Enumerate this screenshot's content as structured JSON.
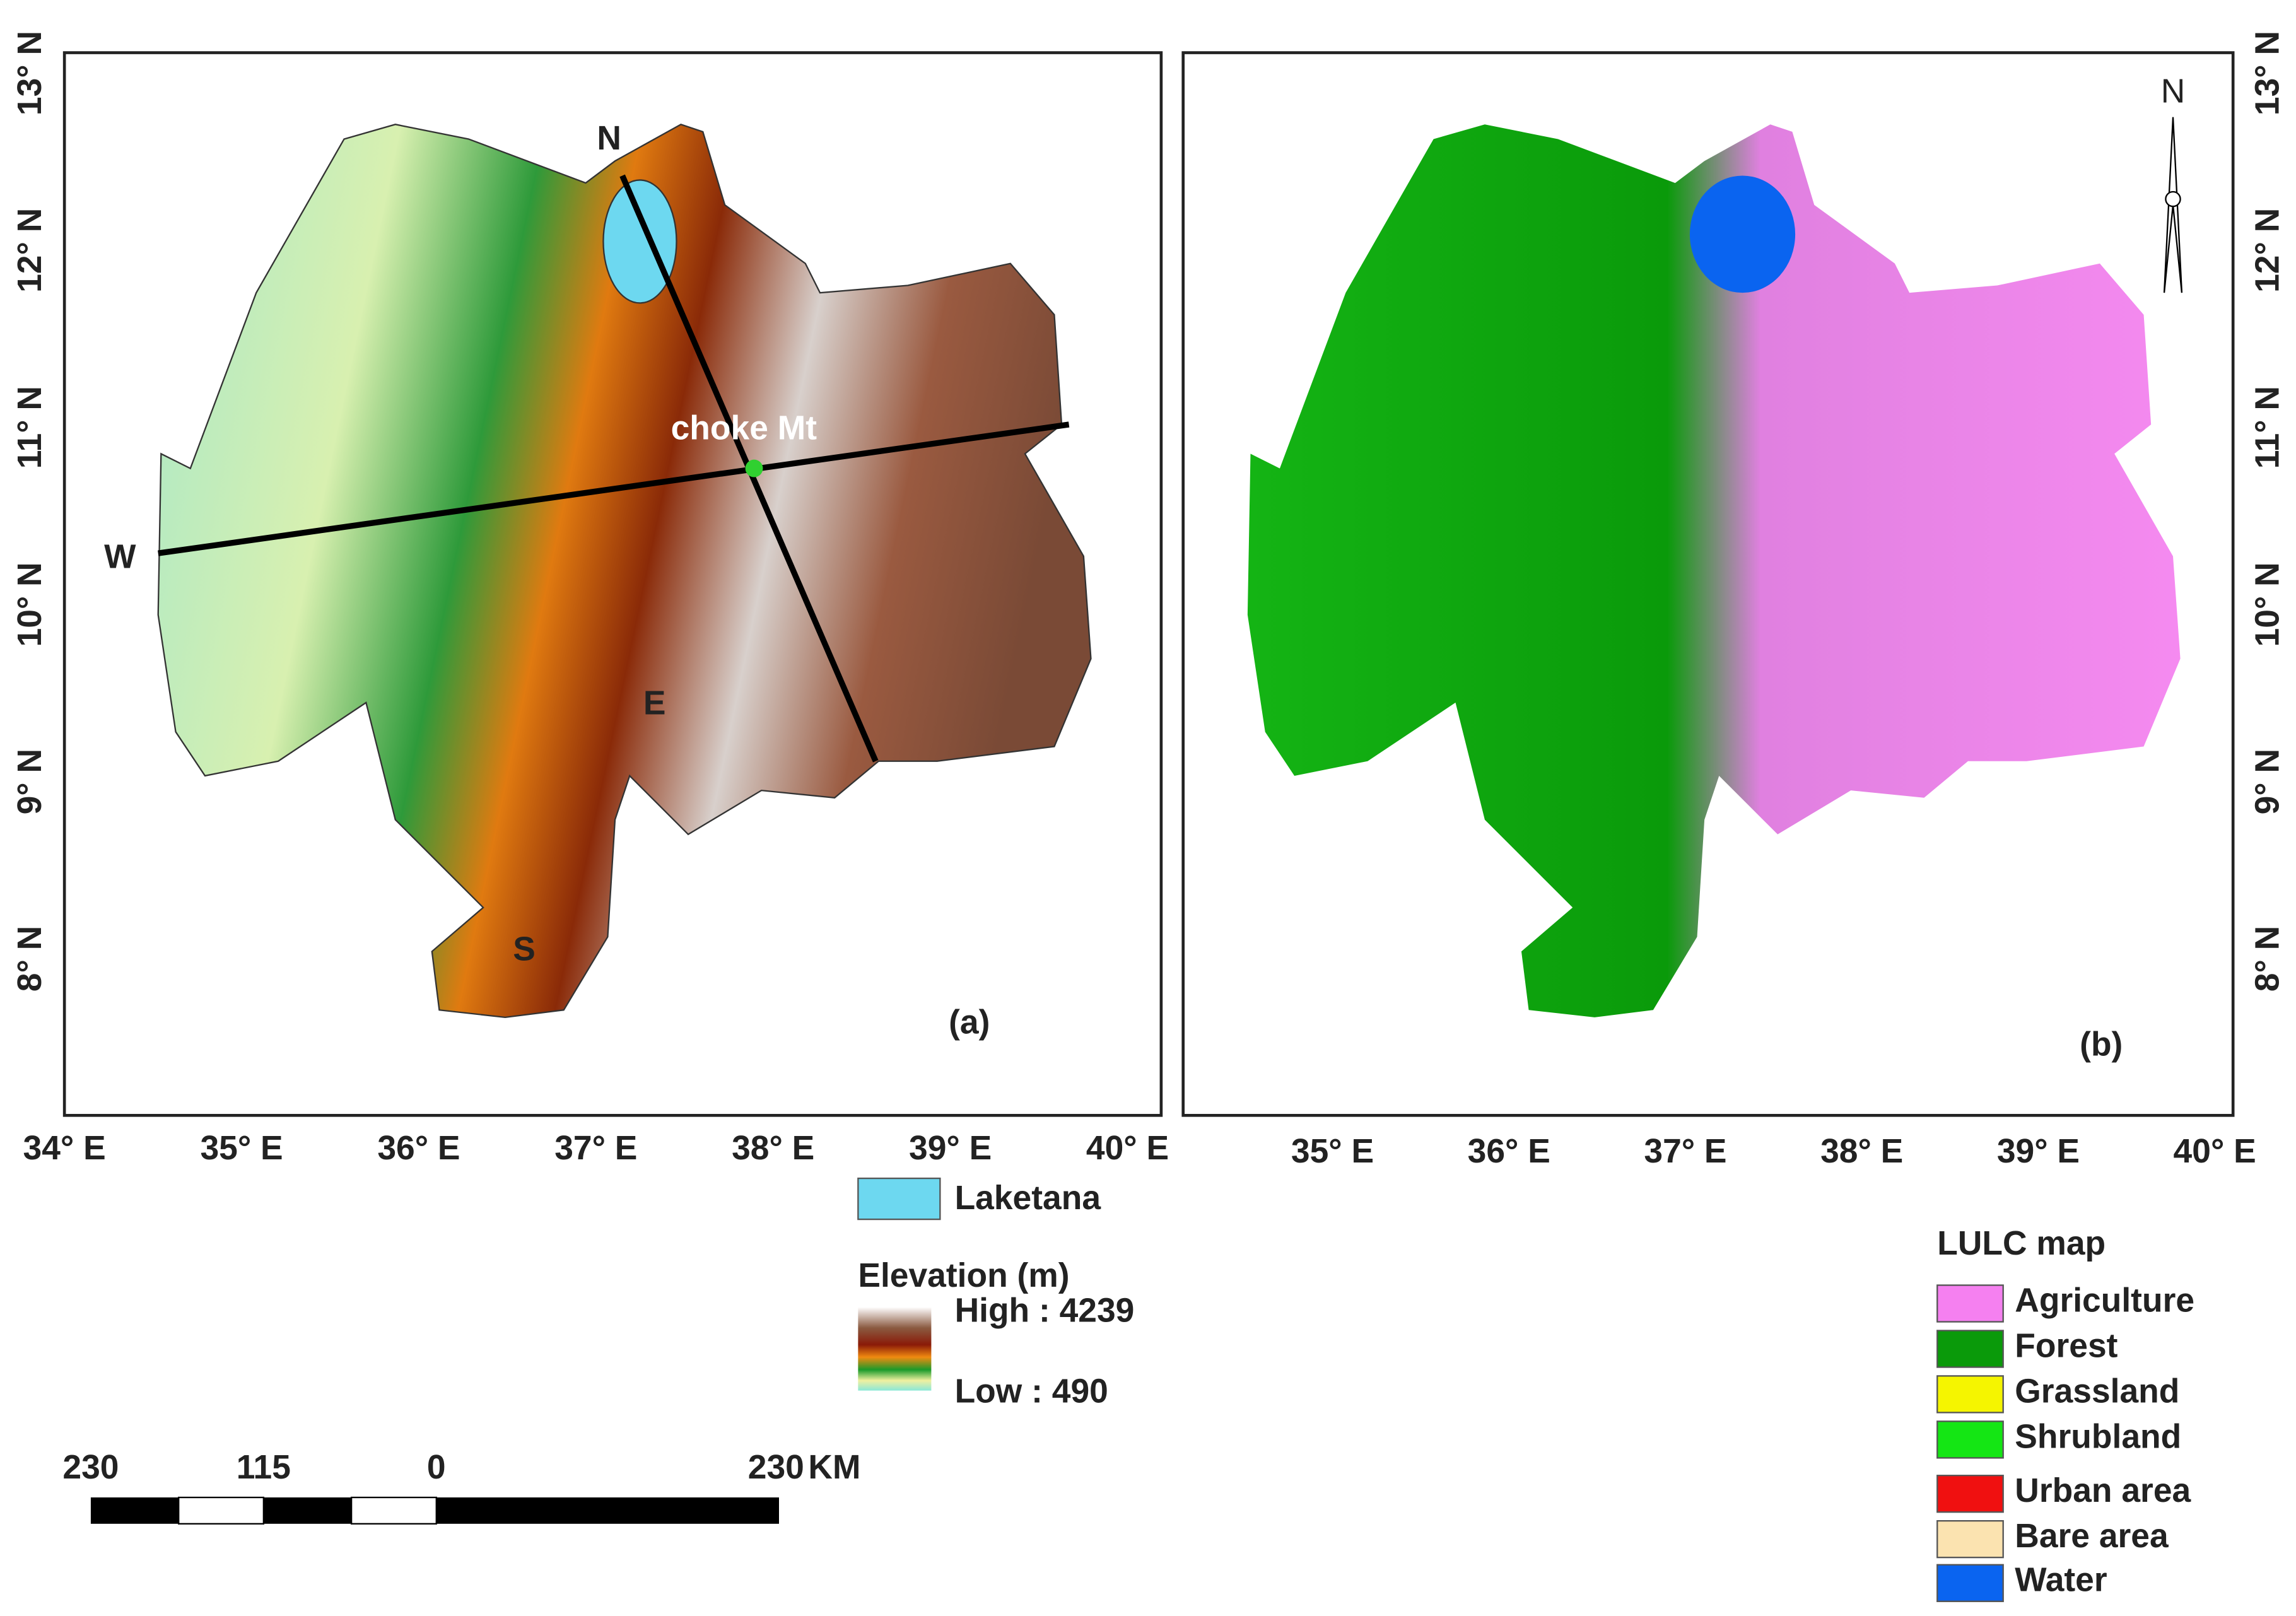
{
  "panel_a": {
    "label": "(a)",
    "x_ticks": [
      "34° E",
      "35° E",
      "36° E",
      "37° E",
      "38° E",
      "39° E",
      "40° E"
    ],
    "y_ticks": [
      "13° N",
      "12° N",
      "11° N",
      "10° N",
      "9° N",
      "8° N"
    ],
    "places": {
      "north": "N",
      "west": "W",
      "east": "E",
      "south": "S",
      "mountain": "choke Mt"
    }
  },
  "panel_b": {
    "label": "(b)",
    "x_ticks": [
      "35° E",
      "36° E",
      "37° E",
      "38° E",
      "39° E",
      "40° E"
    ],
    "y_ticks": [
      "13° N",
      "12° N",
      "11° N",
      "10° N",
      "9° N",
      "8° N"
    ],
    "north_arrow": "N"
  },
  "legend_a": {
    "lake": "Laketana",
    "elevation_title": "Elevation (m)",
    "high": "High : 4239",
    "low": "Low : 490"
  },
  "legend_b": {
    "title": "LULC map",
    "classes": [
      {
        "name": "Agriculture",
        "color": "#f580f0"
      },
      {
        "name": "Forest",
        "color": "#0a9a0a"
      },
      {
        "name": "Grassland",
        "color": "#f5f500"
      },
      {
        "name": "Shrubland",
        "color": "#14e614"
      },
      {
        "name": "Urban area",
        "color": "#f01010"
      },
      {
        "name": "Bare area",
        "color": "#fbe3b0"
      },
      {
        "name": "Water",
        "color": "#0a64f0"
      }
    ]
  },
  "scale_bar": {
    "labels": [
      "230",
      "115",
      "0",
      "230"
    ],
    "unit": "KM"
  }
}
